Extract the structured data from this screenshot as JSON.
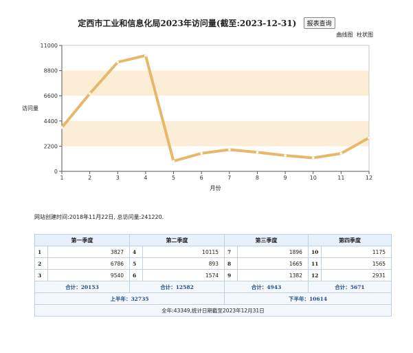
{
  "title": "定西市工业和信息化局2023年访问量(截至:2023-12-31)",
  "report_button": "报表查询",
  "chart_toggle": {
    "line": "曲线图",
    "bar": "柱状图"
  },
  "chart_data": {
    "type": "line",
    "x": [
      1,
      2,
      3,
      4,
      5,
      6,
      7,
      8,
      9,
      10,
      11,
      12
    ],
    "values": [
      3827,
      6786,
      9540,
      10115,
      893,
      1574,
      1896,
      1665,
      1382,
      1175,
      1565,
      2931
    ],
    "xlabel": "月份",
    "ylabel": "访问量",
    "ylim": [
      0,
      11000
    ],
    "yticks": [
      0,
      2200,
      4400,
      6600,
      8800,
      11000
    ],
    "line_color": "#e8b86a",
    "band_color": "#fbe8c8"
  },
  "site_info": "网站创建时间:2018年11月22日, 总访问量:241220.",
  "table": {
    "headers": [
      "第一季度",
      "第二季度",
      "第三季度",
      "第四季度"
    ],
    "rows": [
      [
        [
          "1",
          "3827"
        ],
        [
          "4",
          "10115"
        ],
        [
          "7",
          "1896"
        ],
        [
          "10",
          "1175"
        ]
      ],
      [
        [
          "2",
          "6786"
        ],
        [
          "5",
          "893"
        ],
        [
          "8",
          "1665"
        ],
        [
          "11",
          "1565"
        ]
      ],
      [
        [
          "3",
          "9540"
        ],
        [
          "6",
          "1574"
        ],
        [
          "9",
          "1382"
        ],
        [
          "12",
          "2931"
        ]
      ]
    ],
    "quarter_totals": [
      "合计：20153",
      "合计：12582",
      "合计：4943",
      "合计：5671"
    ],
    "half_totals": [
      "上半年：32735",
      "下半年：10614"
    ],
    "year_total": "全年:43349,统计日期截至2023年12月31日"
  }
}
